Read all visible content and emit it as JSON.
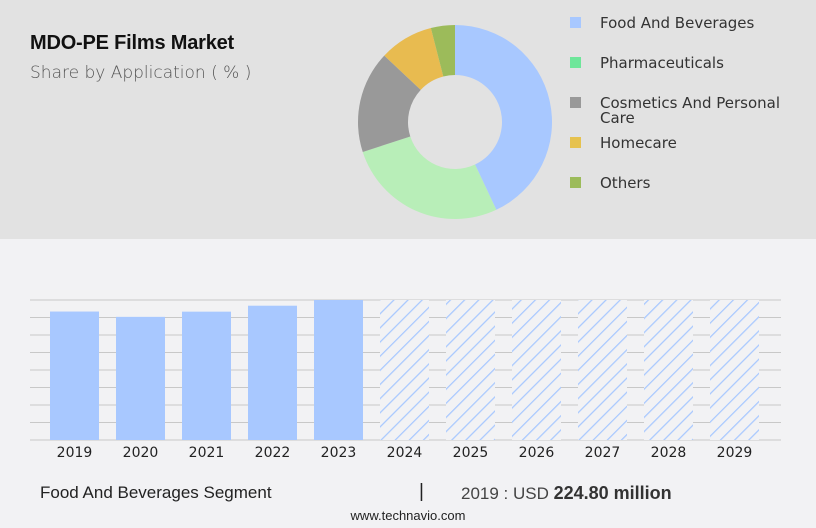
{
  "header": {
    "title": "MDO-PE Films Market",
    "subtitle": "Share by Application ( % )"
  },
  "legend": {
    "items": [
      {
        "label": "Food And Beverages",
        "color": "#a8c8ff"
      },
      {
        "label": "Pharmaceuticals",
        "color": "#6ee69a"
      },
      {
        "label": "Cosmetics And Personal Care",
        "color": "#999999"
      },
      {
        "label": "Homecare",
        "color": "#e6c24f"
      },
      {
        "label": "Others",
        "color": "#9cbb5a"
      }
    ]
  },
  "footer": {
    "segment": "Food And Beverages Segment",
    "separator": "|",
    "value_prefix": "2019 : USD ",
    "value_bold": "224.80 million",
    "url": "www.technavio.com"
  },
  "chart_data": [
    {
      "type": "pie",
      "title": "MDO-PE Films Market",
      "subtitle": "Share by Application ( % )",
      "donut": true,
      "categories": [
        "Food And Beverages",
        "Pharmaceuticals",
        "Cosmetics And Personal Care",
        "Homecare",
        "Others"
      ],
      "values": [
        43,
        27,
        17,
        9,
        4
      ],
      "colors": [
        "#a8c8ff",
        "#b8eeb8",
        "#999999",
        "#e8bb50",
        "#9cbb5a"
      ],
      "legend_position": "right"
    },
    {
      "type": "bar",
      "title": "Food And Beverages Segment",
      "categories": [
        "2019",
        "2020",
        "2021",
        "2022",
        "2023",
        "2024",
        "2025",
        "2026",
        "2027",
        "2028",
        "2029"
      ],
      "values": [
        224.8,
        215.5,
        224.6,
        235.0,
        245.0,
        null,
        null,
        null,
        null,
        null,
        null
      ],
      "forecast": [
        false,
        false,
        false,
        false,
        false,
        true,
        true,
        true,
        true,
        true,
        true
      ],
      "annotation": "2019 : USD 224.80 million",
      "xlabel": "",
      "ylabel": "",
      "grid": true,
      "gridlines": 9,
      "bar_color": "#a8c8ff",
      "forecast_style": "hatched"
    }
  ]
}
